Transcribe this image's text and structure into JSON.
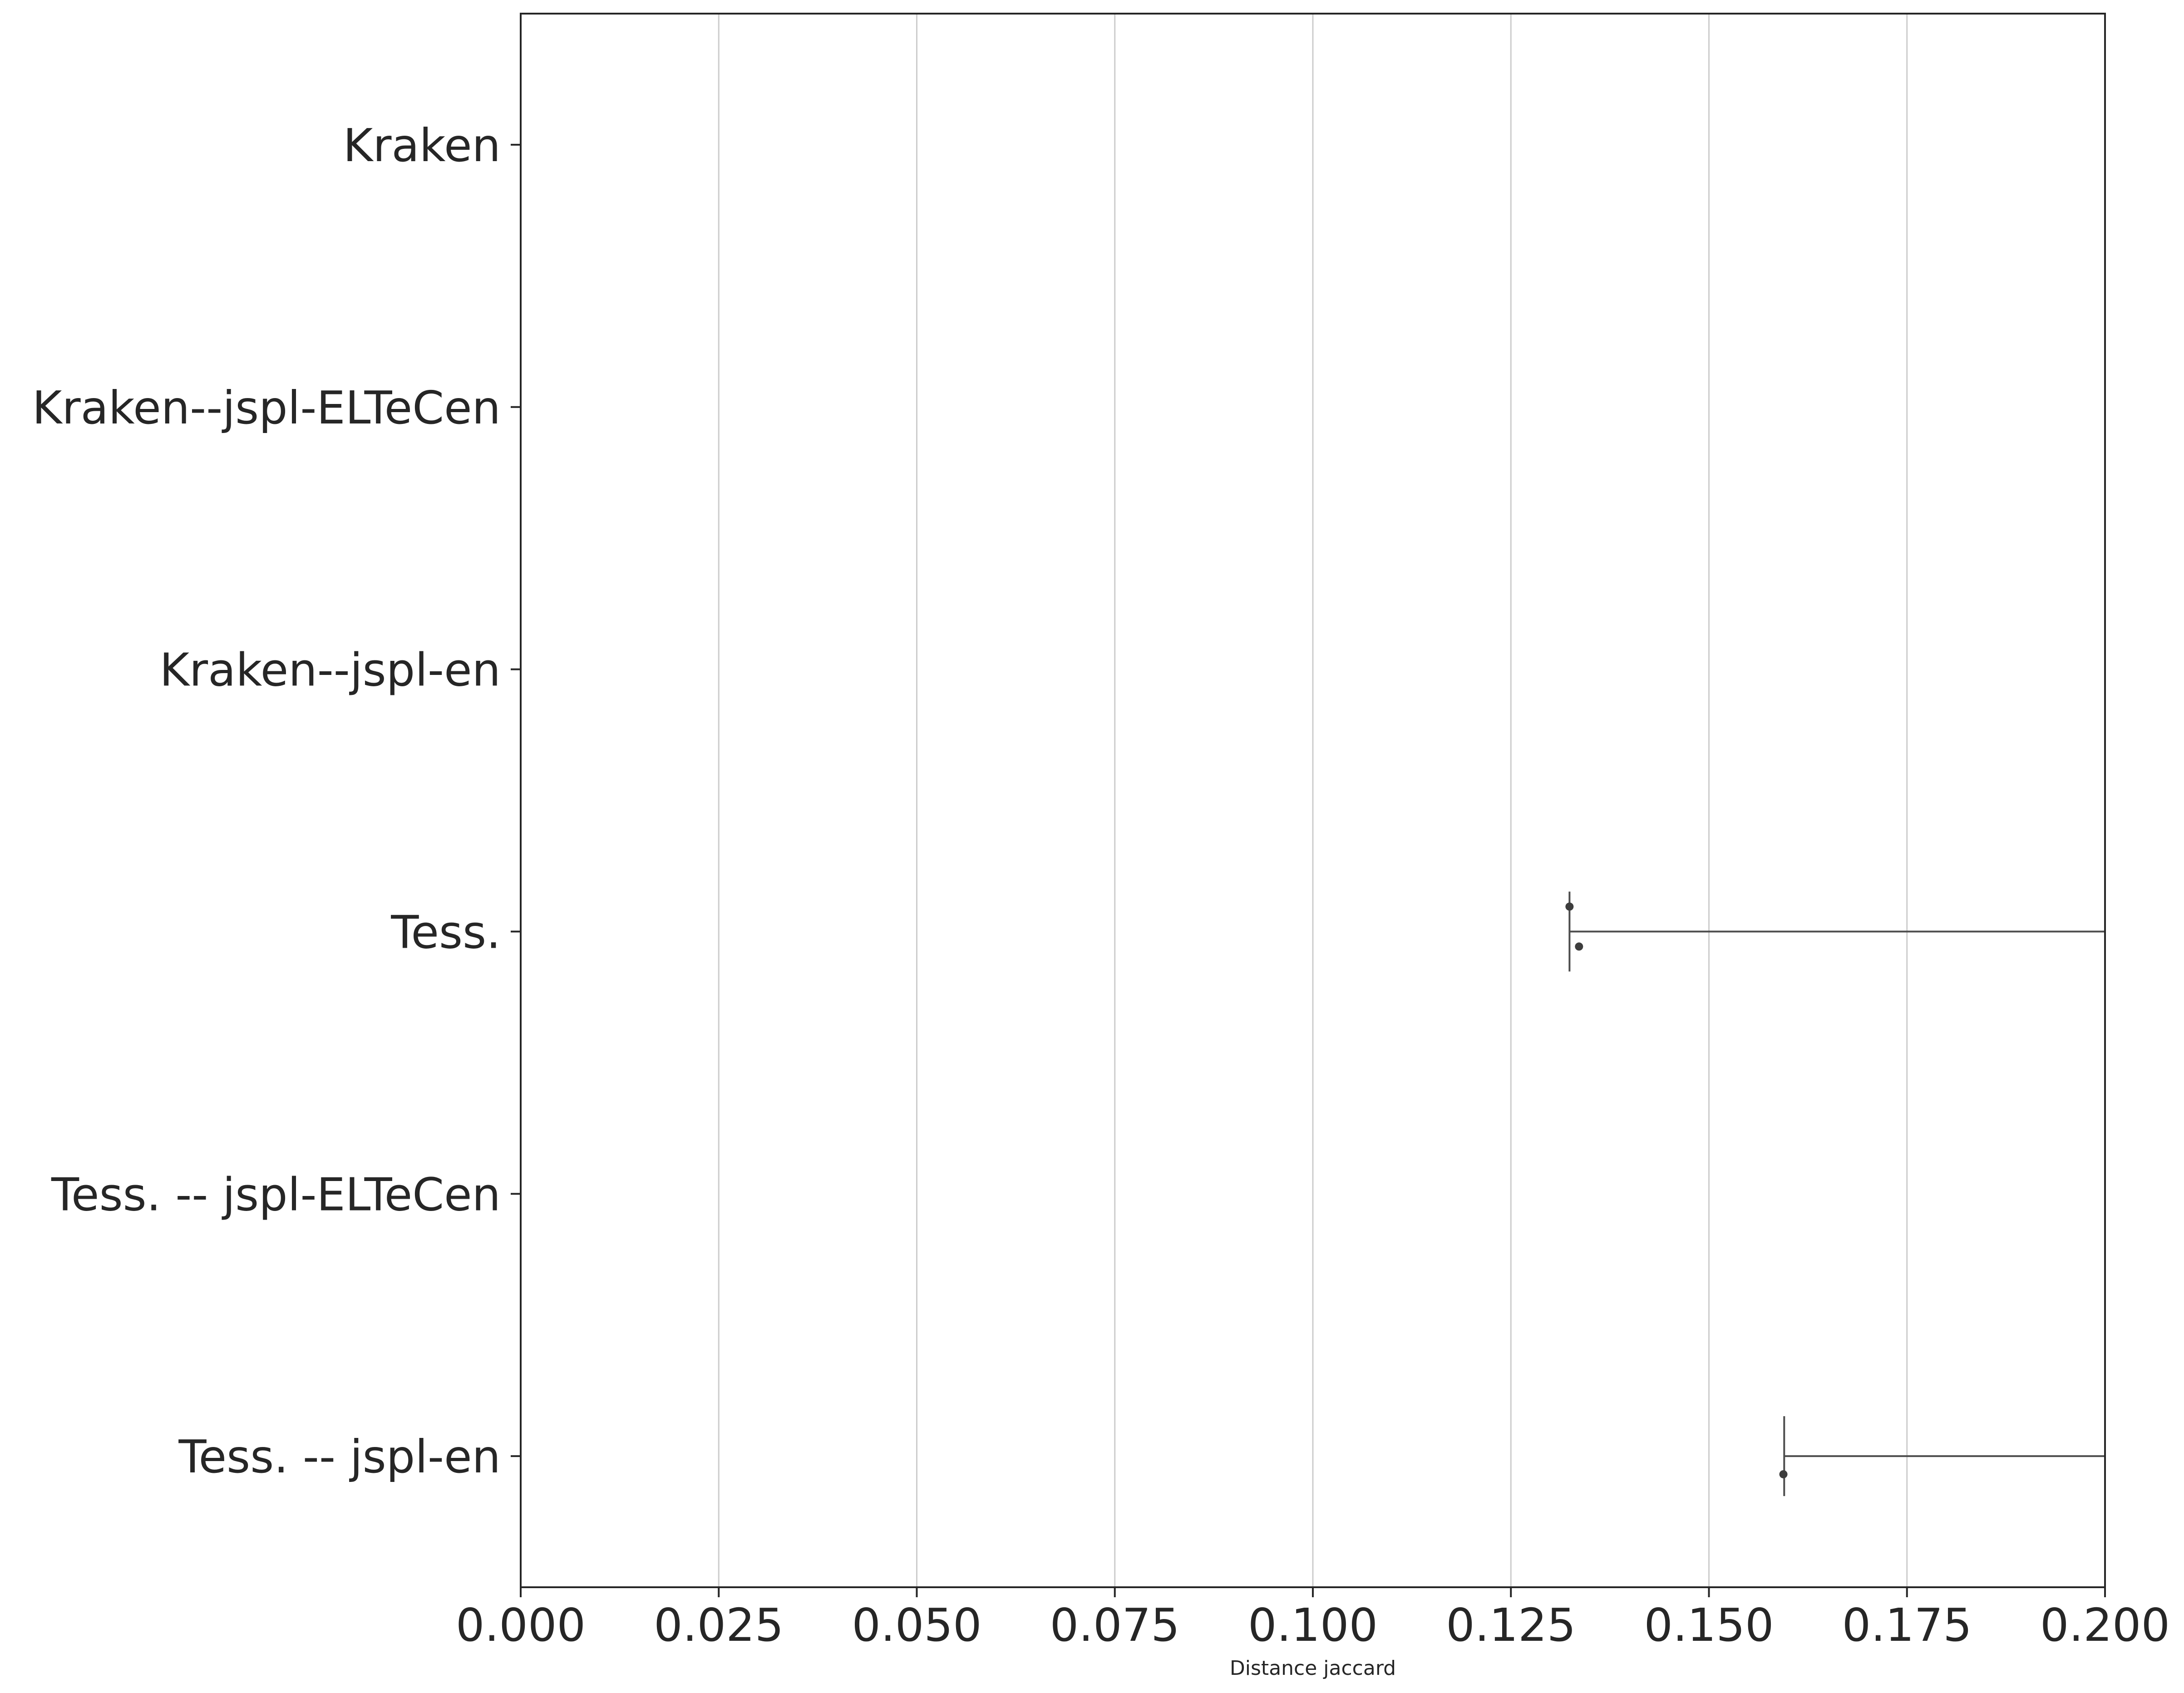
{
  "chart_data": {
    "type": "box",
    "orientation": "horizontal",
    "xlabel": "Distance jaccard",
    "ylabel": "",
    "xlim": [
      0.0,
      0.2
    ],
    "xticks": [
      0.0,
      0.025,
      0.05,
      0.075,
      0.1,
      0.125,
      0.15,
      0.175,
      0.2
    ],
    "xtick_labels": [
      "0.000",
      "0.025",
      "0.050",
      "0.075",
      "0.100",
      "0.125",
      "0.150",
      "0.175",
      "0.200"
    ],
    "grid": "vertical",
    "categories": [
      "Kraken",
      "Kraken--jspl-ELTeCen",
      "Kraken--jspl-en",
      "Tess.",
      "Tess. -- jspl-ELTeCen",
      "Tess. -- jspl-en"
    ],
    "boxes": [
      {
        "category": "Tess.",
        "lower_whisker": 0.1324,
        "whisker_extends_beyond": 0.2,
        "outliers": [
          0.1324,
          0.1336
        ]
      },
      {
        "category": "Tess. -- jspl-en",
        "lower_whisker": 0.1595,
        "whisker_extends_beyond": 0.2,
        "outliers": [
          0.1594
        ]
      }
    ],
    "colors": {
      "axis": "#262626",
      "grid": "#cccccc",
      "whisker": "#4d4d4d",
      "outlier": "#3d3d3d"
    }
  }
}
